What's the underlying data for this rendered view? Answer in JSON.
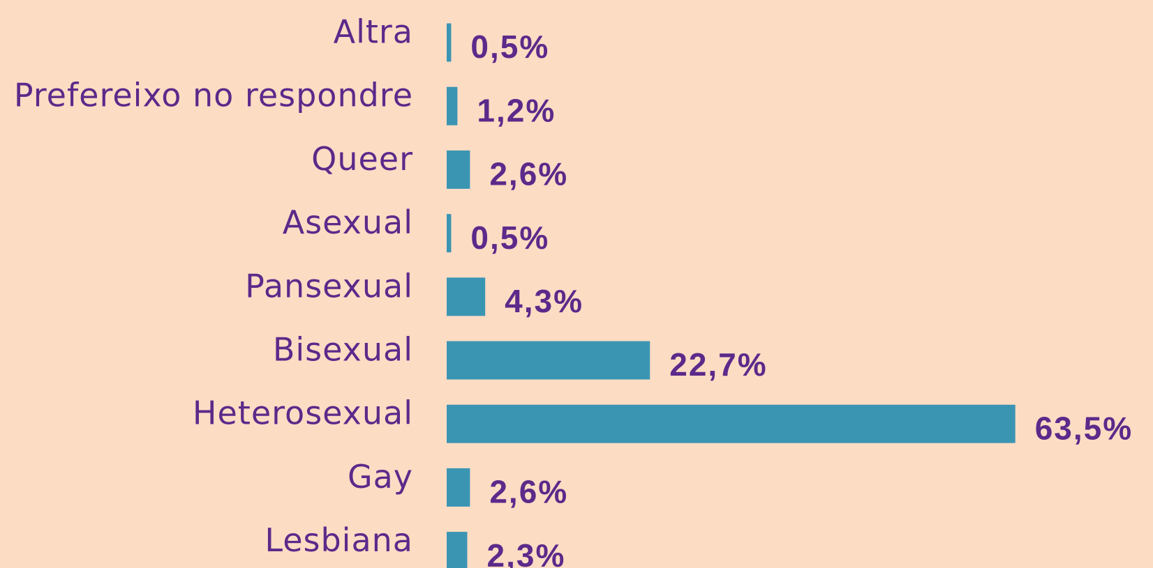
{
  "chart_data": {
    "type": "barh",
    "categories": [
      "Altra",
      "Prefereixo no respondre",
      "Queer",
      "Asexual",
      "Pansexual",
      "Bisexual",
      "Heterosexual",
      "Gay",
      "Lesbiana"
    ],
    "values": [
      0.5,
      1.2,
      2.6,
      0.5,
      4.3,
      22.7,
      63.5,
      2.6,
      2.3
    ],
    "value_labels": [
      "0,5%",
      "1,2%",
      "2,6%",
      "0,5%",
      "4,3%",
      "22,7%",
      "63,5%",
      "2,6%",
      "2,3%"
    ],
    "color": "#3a95b3"
  }
}
